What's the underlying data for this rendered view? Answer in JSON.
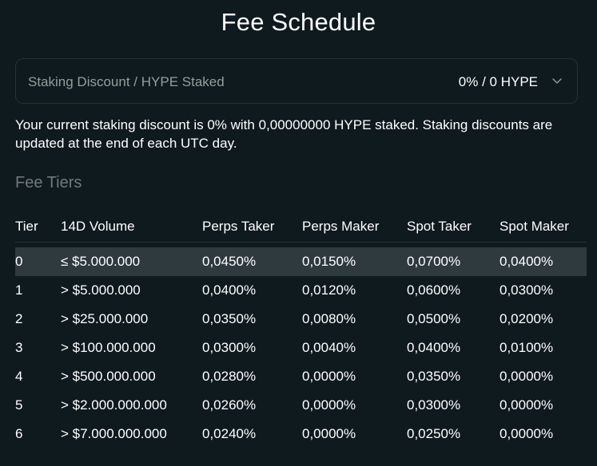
{
  "modal": {
    "title": "Fee Schedule"
  },
  "staking": {
    "label": "Staking Discount / HYPE Staked",
    "value": "0% / 0 HYPE",
    "description": "Your current staking discount is 0% with 0,00000000 HYPE staked. Staking discounts are updated at the end of each UTC day."
  },
  "fee_tiers": {
    "title": "Fee Tiers",
    "columns": [
      "Tier",
      "14D Volume",
      "Perps Taker",
      "Perps Maker",
      "Spot Taker",
      "Spot Maker"
    ],
    "rows": [
      [
        "0",
        "≤ $5.000.000",
        "0,0450%",
        "0,0150%",
        "0,0700%",
        "0,0400%"
      ],
      [
        "1",
        "> $5.000.000",
        "0,0400%",
        "0,0120%",
        "0,0600%",
        "0,0300%"
      ],
      [
        "2",
        "> $25.000.000",
        "0,0350%",
        "0,0080%",
        "0,0500%",
        "0,0200%"
      ],
      [
        "3",
        "> $100.000.000",
        "0,0300%",
        "0,0040%",
        "0,0400%",
        "0,0100%"
      ],
      [
        "4",
        "> $500.000.000",
        "0,0280%",
        "0,0000%",
        "0,0350%",
        "0,0000%"
      ],
      [
        "5",
        "> $2.000.000.000",
        "0,0260%",
        "0,0000%",
        "0,0300%",
        "0,0000%"
      ],
      [
        "6",
        "> $7.000.000.000",
        "0,0240%",
        "0,0000%",
        "0,0250%",
        "0,0000%"
      ]
    ],
    "highlighted_row": 0
  },
  "colors": {
    "background": "#0f1a1f",
    "text": "#ffffff",
    "muted_text": "#949e9c",
    "section_title": "#70797b",
    "border": "#273035",
    "highlight_row": "#2f3a3f"
  },
  "icons": {
    "dropdown": "chevron-down-icon"
  }
}
